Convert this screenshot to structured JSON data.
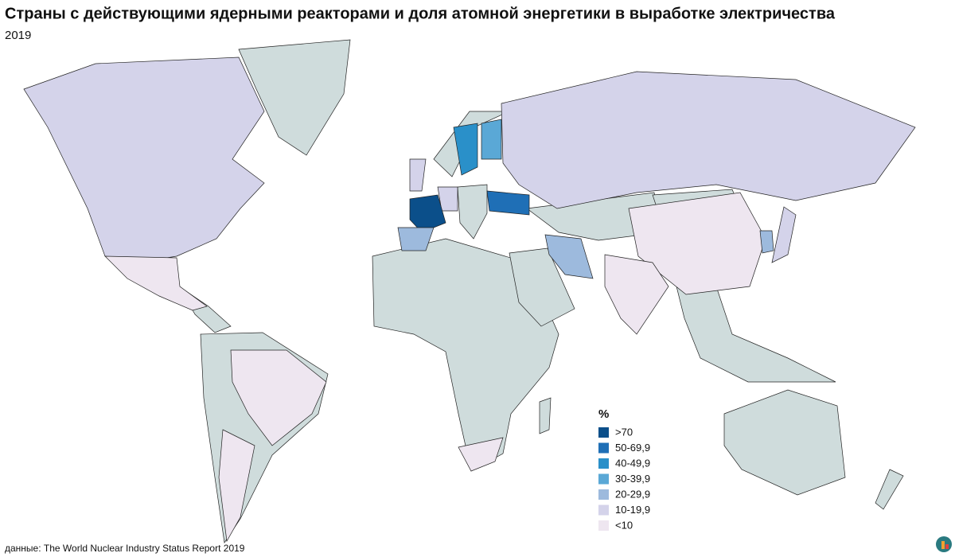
{
  "header": {
    "title": "Страны с действующими ядерными реакторами и доля атомной энергетики в выработке электричества",
    "subtitle": "2019"
  },
  "legend": {
    "title": "%",
    "items": [
      {
        "label": ">70",
        "color": "#0b4f8a"
      },
      {
        "label": "50-69,9",
        "color": "#1f6fb6"
      },
      {
        "label": "40-49,9",
        "color": "#2a90c9"
      },
      {
        "label": "30-39,9",
        "color": "#5aa8d6"
      },
      {
        "label": "20-29,9",
        "color": "#9dbadd"
      },
      {
        "label": "10-19,9",
        "color": "#d4d3ea"
      },
      {
        "label": "<10",
        "color": "#eee6f0"
      }
    ]
  },
  "footer": {
    "source": "данные: The World Nuclear Industry Status Report 2019"
  }
}
